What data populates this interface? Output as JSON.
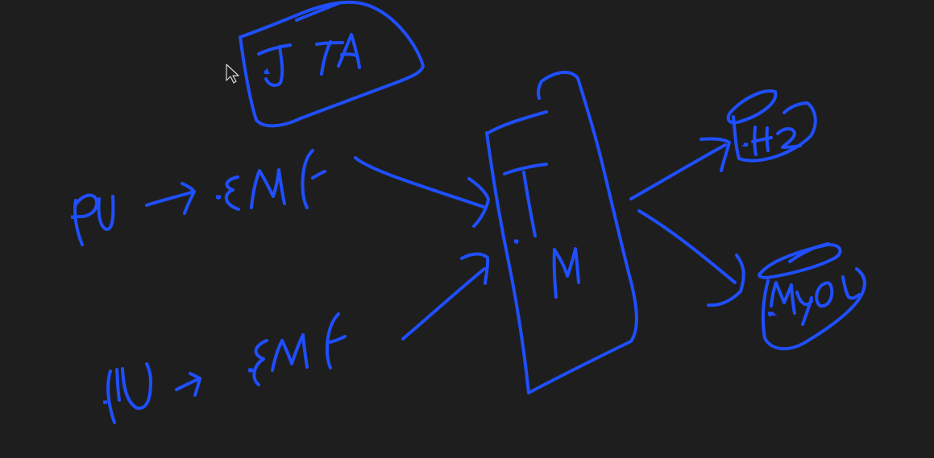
{
  "colors": {
    "background": "#1e1e1e",
    "ink": "#1f4fff",
    "cursor_fill": "#1e1e1e",
    "cursor_stroke": "#d8d8d8"
  },
  "labels": {
    "jta": "JTA",
    "pu_1": "PU",
    "emf_1": "EMF",
    "pu_2": "PU",
    "emf_2": "EMF",
    "tm": "TM",
    "h2": "H2",
    "mysql": "MySQL"
  },
  "icons": {
    "cursor": "arrow-cursor-icon"
  }
}
